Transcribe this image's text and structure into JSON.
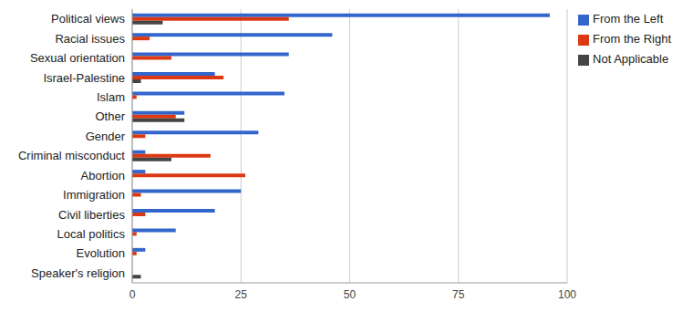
{
  "chart_data": {
    "type": "bar",
    "orientation": "horizontal",
    "grid": true,
    "legend": "right",
    "categories": [
      "Political views",
      "Racial issues",
      "Sexual orientation",
      "Israel-Palestine",
      "Islam",
      "Other",
      "Gender",
      "Criminal misconduct",
      "Abortion",
      "Immigration",
      "Civil liberties",
      "Local politics",
      "Evolution",
      "Speaker's religion"
    ],
    "series": [
      {
        "name": "From the Left",
        "color": "#3366cc",
        "values": [
          96,
          46,
          36,
          19,
          35,
          12,
          29,
          3,
          3,
          25,
          19,
          10,
          3,
          0
        ]
      },
      {
        "name": "From the Right",
        "color": "#dc3912",
        "values": [
          36,
          4,
          9,
          21,
          1,
          10,
          3,
          18,
          26,
          2,
          3,
          1,
          1,
          0
        ]
      },
      {
        "name": "Not Applicable",
        "color": "#444444",
        "values": [
          7,
          0,
          0,
          2,
          0,
          12,
          0,
          9,
          0,
          0,
          0,
          0,
          0,
          2
        ]
      }
    ],
    "xlim": [
      0,
      100
    ],
    "xticks": [
      0,
      25,
      50,
      75,
      100
    ]
  }
}
